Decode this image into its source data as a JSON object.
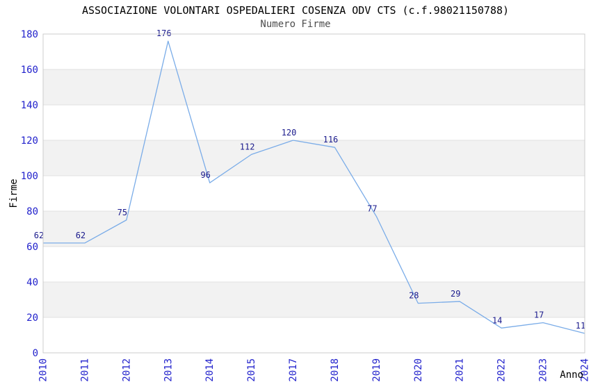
{
  "chart_data": {
    "type": "line",
    "title": "ASSOCIAZIONE VOLONTARI OSPEDALIERI COSENZA ODV CTS (c.f.98021150788)",
    "subtitle": "Numero Firme",
    "xlabel": "Anno",
    "ylabel": "Firme",
    "categories": [
      "2010",
      "2011",
      "2012",
      "2013",
      "2014",
      "2015",
      "2017",
      "2018",
      "2019",
      "2020",
      "2021",
      "2022",
      "2023",
      "2024"
    ],
    "values": [
      62,
      62,
      75,
      176,
      96,
      112,
      120,
      116,
      77,
      28,
      29,
      14,
      17,
      11
    ],
    "ylim": [
      0,
      180
    ],
    "yticks": [
      0,
      20,
      40,
      60,
      80,
      100,
      120,
      140,
      160,
      180
    ],
    "grid": true,
    "legend_position": "none",
    "x_tick_rotation_deg": -90,
    "colors": {
      "line": "#7aace8",
      "axis_tick_label": "#2222cc",
      "value_label": "#1a1a8c",
      "band_fill": "#f2f2f2",
      "gridline": "#e0e0e0",
      "plot_border": "#cccccc",
      "title": "#000000",
      "subtitle": "#4d4d4d",
      "axis_title": "#000000",
      "background": "#ffffff"
    }
  }
}
